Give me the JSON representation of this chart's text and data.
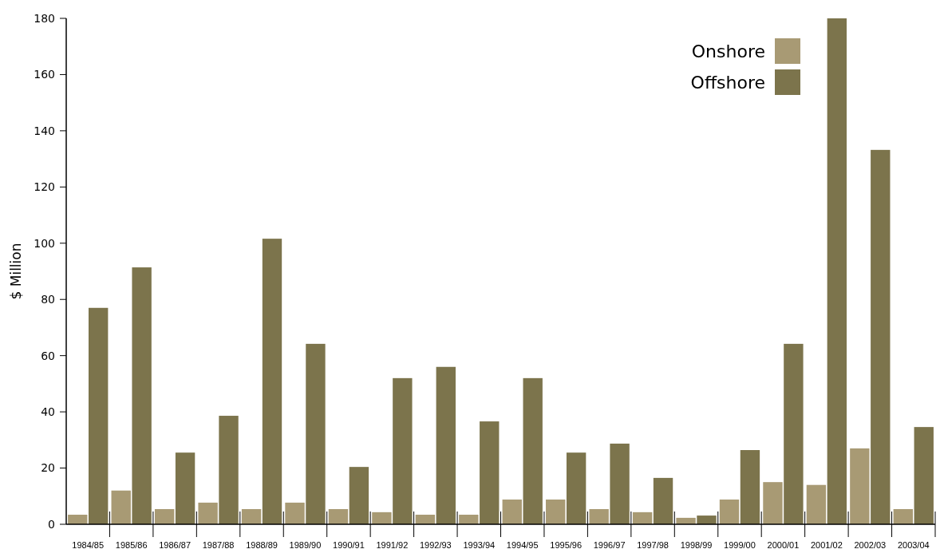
{
  "chart_data": {
    "type": "bar",
    "ylabel": "$ Million",
    "categories": [
      "1984/85",
      "1985/86",
      "1986/87",
      "1987/88",
      "1988/89",
      "1989/90",
      "1990/91",
      "1991/92",
      "1992/93",
      "1993/94",
      "1994/95",
      "1995/96",
      "1996/97",
      "1997/98",
      "1998/99",
      "1999/00",
      "2000/01",
      "2001/02",
      "2002/03",
      "2003/04"
    ],
    "series": [
      {
        "name": "Onshore",
        "color": "#a89a74",
        "values": [
          3.4,
          12,
          5.4,
          7.7,
          5.4,
          7.7,
          5.4,
          4.3,
          3.4,
          3.4,
          8.8,
          8.8,
          5.4,
          4.3,
          2.3,
          8.8,
          15,
          14,
          27,
          5.4
        ]
      },
      {
        "name": "Offshore",
        "color": "#7c744c",
        "values": [
          77,
          91.4,
          25.5,
          38.6,
          101.6,
          64.2,
          20.4,
          52,
          56,
          36.6,
          52,
          25.5,
          28.7,
          16.5,
          3.1,
          26.4,
          64.2,
          180,
          133.2,
          34.6
        ]
      }
    ],
    "ylim": [
      0,
      180
    ],
    "yticks": [
      0,
      20,
      40,
      60,
      80,
      100,
      120,
      140,
      160,
      180
    ],
    "grid": false,
    "legend": "top right"
  }
}
